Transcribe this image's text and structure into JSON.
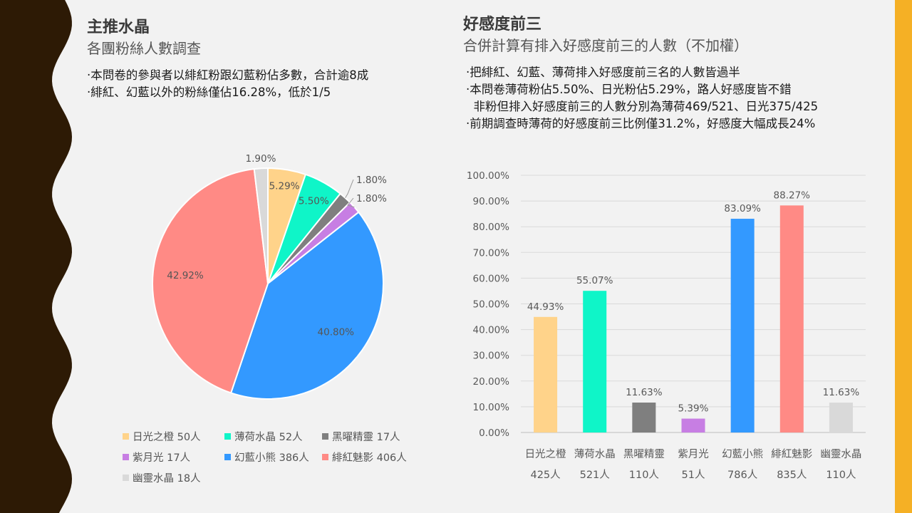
{
  "colors": {
    "deco_dark": "#2d1a05",
    "right_strip": "#f5b025"
  },
  "left": {
    "title": "主推水晶",
    "subtitle": "各團粉絲人數調查",
    "bullets": [
      "‧本問卷的參與者以緋紅粉跟幻藍粉佔多數，合計逾8成",
      "‧緋紅、幻藍以外的粉絲僅佔16.28%，低於1/5"
    ]
  },
  "right": {
    "title": "好感度前三",
    "subtitle": "合併計算有排入好感度前三的人數（不加權）",
    "bullets": [
      "‧把緋紅、幻藍、薄荷排入好感度前三名的人數皆過半",
      "‧本問卷薄荷粉佔5.50%、日光粉佔5.29%，路人好感度皆不錯",
      "  非粉但排入好感度前三的人數分別為薄荷469/521、日光375/425",
      "‧前期調查時薄荷的好感度前三比例僅31.2%，好感度大幅成長24%"
    ]
  },
  "chart_data": [
    {
      "type": "pie",
      "slices": [
        {
          "name": "日光之橙",
          "count": "50人",
          "value": 5.29,
          "label": "5.29%",
          "color": "#ffd38a"
        },
        {
          "name": "薄荷水晶",
          "count": "52人",
          "value": 5.5,
          "label": "5.50%",
          "color": "#0ff5c8"
        },
        {
          "name": "黑曜精靈",
          "count": "17人",
          "value": 1.8,
          "label": "1.80%",
          "color": "#7f7f7f"
        },
        {
          "name": "紫月光",
          "count": "17人",
          "value": 1.8,
          "label": "1.80%",
          "color": "#c77ee3"
        },
        {
          "name": "幻藍小熊",
          "count": "386人",
          "value": 40.8,
          "label": "40.80%",
          "color": "#3399ff"
        },
        {
          "name": "緋紅魅影",
          "count": "406人",
          "value": 42.92,
          "label": "42.92%",
          "color": "#ff8a85"
        },
        {
          "name": "幽靈水晶",
          "count": "18人",
          "value": 1.9,
          "label": "1.90%",
          "color": "#d9d9d9"
        }
      ],
      "legend_position": "bottom"
    },
    {
      "type": "bar",
      "categories": [
        "日光之橙",
        "薄荷水晶",
        "黑曜精靈",
        "紫月光",
        "幻藍小熊",
        "緋紅魅影",
        "幽靈水晶"
      ],
      "category_counts": [
        "425人",
        "521人",
        "110人",
        "51人",
        "786人",
        "835人",
        "110人"
      ],
      "values": [
        44.93,
        55.07,
        11.63,
        5.39,
        83.09,
        88.27,
        11.63
      ],
      "value_labels": [
        "44.93%",
        "55.07%",
        "11.63%",
        "5.39%",
        "83.09%",
        "88.27%",
        "11.63%"
      ],
      "colors": [
        "#ffd38a",
        "#0ff5c8",
        "#7f7f7f",
        "#c77ee3",
        "#3399ff",
        "#ff8a85",
        "#d9d9d9"
      ],
      "ylim": [
        0,
        100
      ],
      "yticks": [
        "0.00%",
        "10.00%",
        "20.00%",
        "30.00%",
        "40.00%",
        "50.00%",
        "60.00%",
        "70.00%",
        "80.00%",
        "90.00%",
        "100.00%"
      ],
      "grid": true
    }
  ]
}
